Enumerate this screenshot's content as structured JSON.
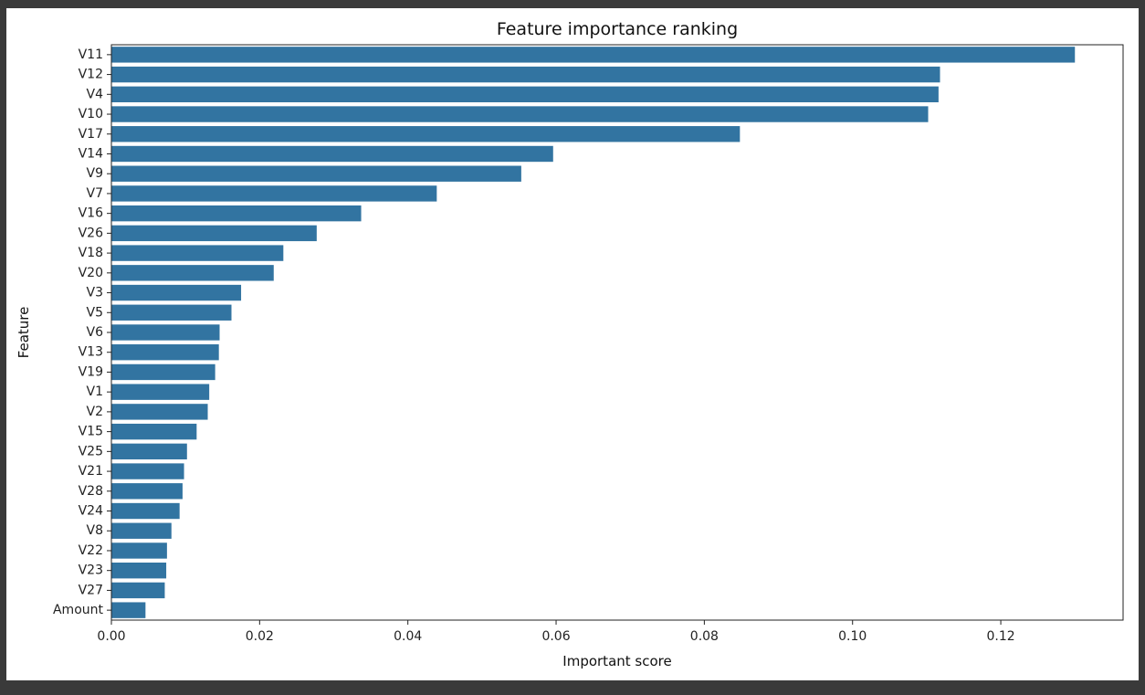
{
  "chart_data": {
    "type": "bar",
    "orientation": "horizontal",
    "title": "Feature importance ranking",
    "xlabel": "Important score",
    "ylabel": "Feature",
    "xlim": [
      0,
      0.1365
    ],
    "xticks": [
      "0.00",
      "0.02",
      "0.04",
      "0.06",
      "0.08",
      "0.10",
      "0.12"
    ],
    "xtick_values": [
      0,
      0.02,
      0.04,
      0.06,
      0.08,
      0.1,
      0.12
    ],
    "grid": false,
    "bar_color": "#3274a1",
    "categories": [
      "V11",
      "V12",
      "V4",
      "V10",
      "V17",
      "V14",
      "V9",
      "V7",
      "V16",
      "V26",
      "V18",
      "V20",
      "V3",
      "V5",
      "V6",
      "V13",
      "V19",
      "V1",
      "V2",
      "V15",
      "V25",
      "V21",
      "V28",
      "V24",
      "V8",
      "V22",
      "V23",
      "V27",
      "Amount"
    ],
    "values": [
      0.13,
      0.1118,
      0.1116,
      0.1102,
      0.0848,
      0.0596,
      0.0553,
      0.0439,
      0.0337,
      0.0277,
      0.0232,
      0.0219,
      0.0175,
      0.0162,
      0.0146,
      0.0145,
      0.014,
      0.0132,
      0.013,
      0.0115,
      0.0102,
      0.0098,
      0.0096,
      0.0092,
      0.0081,
      0.0075,
      0.0074,
      0.0072,
      0.0046
    ]
  }
}
